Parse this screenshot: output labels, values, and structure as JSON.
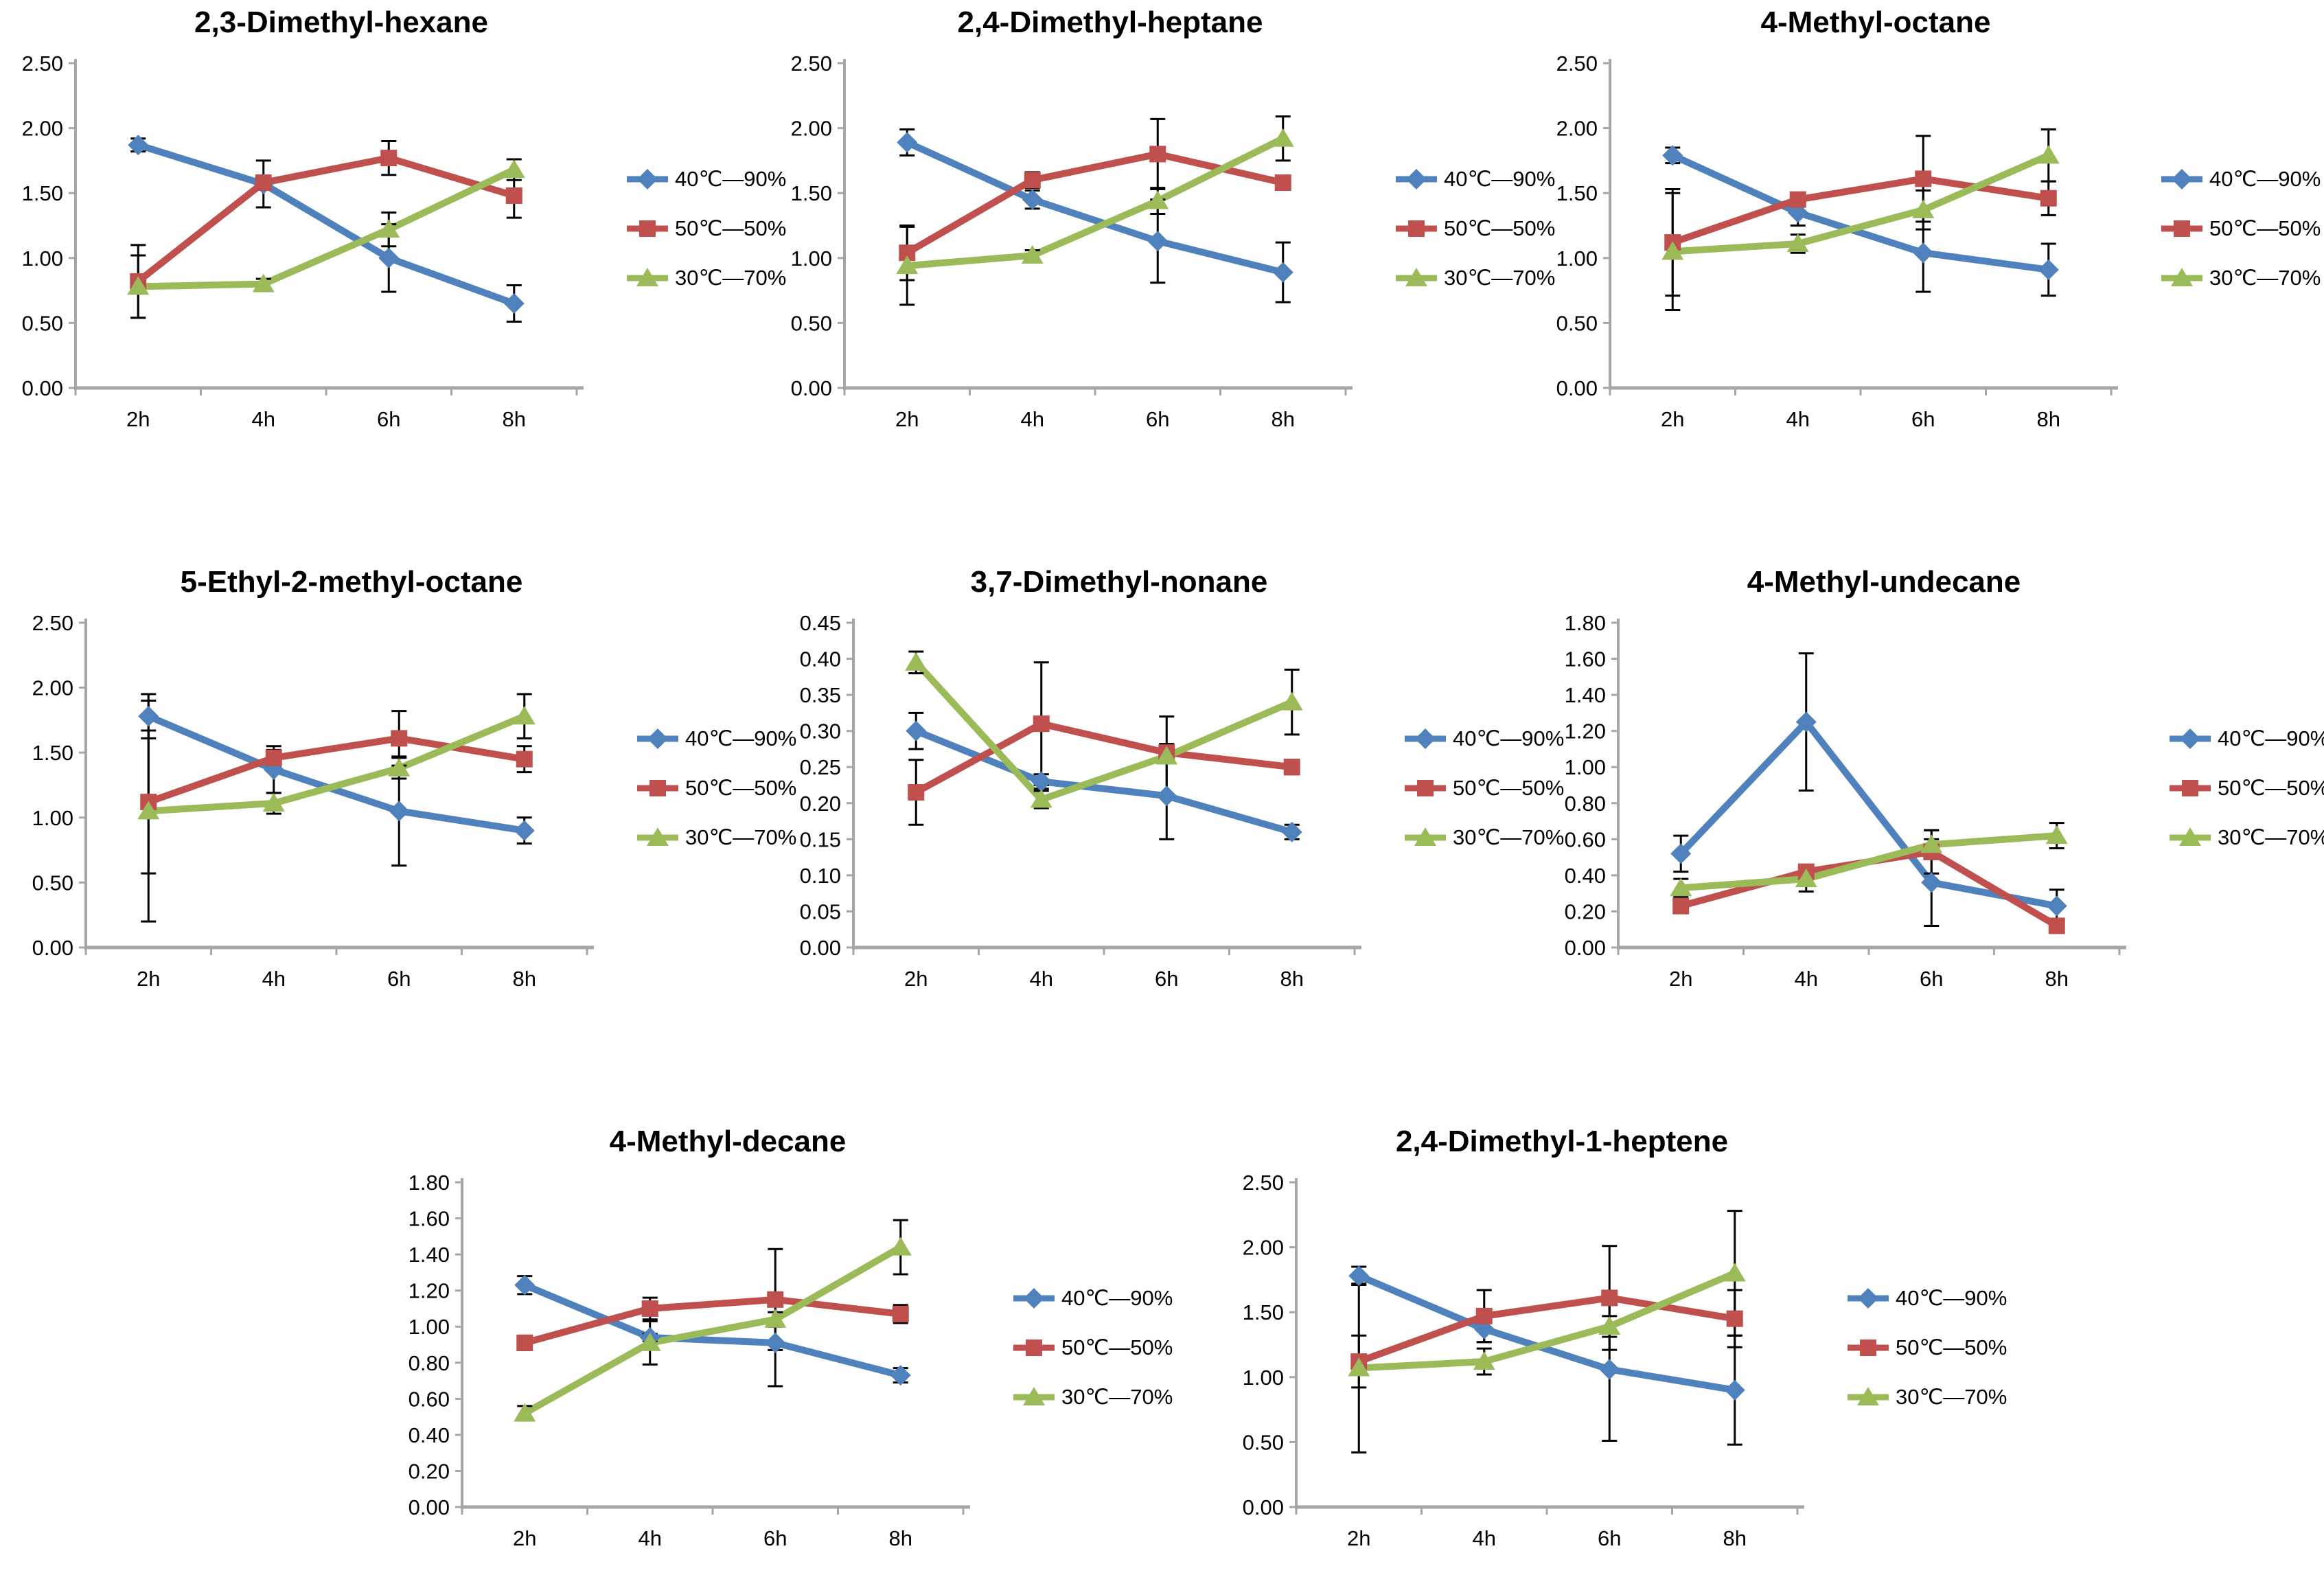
{
  "palette": {
    "blue": "#4F81BD",
    "red": "#C0504D",
    "green": "#9BBB59",
    "axis": "#A6A6A6",
    "error": "#000000"
  },
  "series_labels": [
    "40℃—90%",
    "50℃—50%",
    "30℃—70%"
  ],
  "x_categories": [
    "2h",
    "4h",
    "6h",
    "8h"
  ],
  "chart_data": [
    {
      "type": "line",
      "title": "2,3-Dimethyl-hexane",
      "categories": [
        "2h",
        "4h",
        "6h",
        "8h"
      ],
      "ylim": [
        0,
        2.5
      ],
      "ystep": 0.5,
      "grid": false,
      "legend_position": "right",
      "series": [
        {
          "name": "40℃—90%",
          "color": "blue",
          "marker": "diamond",
          "values": [
            1.87,
            1.57,
            1.0,
            0.65
          ],
          "errors": [
            0.05,
            0.18,
            0.26,
            0.14
          ]
        },
        {
          "name": "50℃—50%",
          "color": "red",
          "marker": "square",
          "values": [
            0.82,
            1.58,
            1.77,
            1.48
          ],
          "errors": [
            0.28,
            0.05,
            0.13,
            0.17
          ]
        },
        {
          "name": "30℃—70%",
          "color": "green",
          "marker": "triangle",
          "values": [
            0.78,
            0.8,
            1.22,
            1.68
          ],
          "errors": [
            0.24,
            0.04,
            0.13,
            0.08
          ]
        }
      ]
    },
    {
      "type": "line",
      "title": "2,4-Dimethyl-heptane",
      "categories": [
        "2h",
        "4h",
        "6h",
        "8h"
      ],
      "ylim": [
        0,
        2.5
      ],
      "ystep": 0.5,
      "grid": false,
      "legend_position": "right",
      "series": [
        {
          "name": "40℃—90%",
          "color": "blue",
          "marker": "diamond",
          "values": [
            1.89,
            1.45,
            1.13,
            0.89
          ],
          "errors": [
            0.1,
            0.07,
            0.32,
            0.23
          ]
        },
        {
          "name": "50℃—50%",
          "color": "red",
          "marker": "square",
          "values": [
            1.04,
            1.6,
            1.8,
            1.58
          ],
          "errors": [
            0.21,
            0.06,
            0.27,
            0.05
          ]
        },
        {
          "name": "30℃—70%",
          "color": "green",
          "marker": "triangle",
          "values": [
            0.94,
            1.02,
            1.44,
            1.92
          ],
          "errors": [
            0.3,
            0.04,
            0.1,
            0.17
          ]
        }
      ]
    },
    {
      "type": "line",
      "title": "4-Methyl-octane",
      "categories": [
        "2h",
        "4h",
        "6h",
        "8h"
      ],
      "ylim": [
        0,
        2.5
      ],
      "ystep": 0.5,
      "grid": false,
      "legend_position": "right",
      "series": [
        {
          "name": "40℃—90%",
          "color": "blue",
          "marker": "diamond",
          "values": [
            1.79,
            1.35,
            1.04,
            0.91
          ],
          "errors": [
            0.06,
            0.1,
            0.3,
            0.2
          ]
        },
        {
          "name": "50℃—50%",
          "color": "red",
          "marker": "square",
          "values": [
            1.12,
            1.45,
            1.61,
            1.46
          ],
          "errors": [
            0.41,
            0.05,
            0.33,
            0.13
          ]
        },
        {
          "name": "30℃—70%",
          "color": "green",
          "marker": "triangle",
          "values": [
            1.05,
            1.11,
            1.37,
            1.79
          ],
          "errors": [
            0.45,
            0.07,
            0.15,
            0.2
          ]
        }
      ]
    },
    {
      "type": "line",
      "title": "5-Ethyl-2-methyl-octane",
      "categories": [
        "2h",
        "4h",
        "6h",
        "8h"
      ],
      "ylim": [
        0,
        2.5
      ],
      "ystep": 0.5,
      "grid": false,
      "legend_position": "right",
      "series": [
        {
          "name": "40℃—90%",
          "color": "blue",
          "marker": "diamond",
          "values": [
            1.78,
            1.37,
            1.05,
            0.9
          ],
          "errors": [
            0.17,
            0.18,
            0.42,
            0.1
          ]
        },
        {
          "name": "50℃—50%",
          "color": "red",
          "marker": "square",
          "values": [
            1.12,
            1.46,
            1.61,
            1.45
          ],
          "errors": [
            0.55,
            0.06,
            0.21,
            0.1
          ]
        },
        {
          "name": "30℃—70%",
          "color": "green",
          "marker": "triangle",
          "values": [
            1.05,
            1.11,
            1.38,
            1.78
          ],
          "errors": [
            0.85,
            0.08,
            0.08,
            0.17
          ]
        }
      ]
    },
    {
      "type": "line",
      "title": "3,7-Dimethyl-nonane",
      "categories": [
        "2h",
        "4h",
        "6h",
        "8h"
      ],
      "ylim": [
        0,
        0.45
      ],
      "ystep": 0.05,
      "grid": false,
      "legend_position": "right",
      "series": [
        {
          "name": "40℃—90%",
          "color": "blue",
          "marker": "diamond",
          "values": [
            0.3,
            0.23,
            0.21,
            0.16
          ],
          "errors": [
            0.025,
            0.01,
            0.06,
            0.01
          ]
        },
        {
          "name": "50℃—50%",
          "color": "red",
          "marker": "square",
          "values": [
            0.215,
            0.31,
            0.27,
            0.25
          ],
          "errors": [
            0.045,
            0.085,
            0.012,
            0.01
          ]
        },
        {
          "name": "30℃—70%",
          "color": "green",
          "marker": "triangle",
          "values": [
            0.395,
            0.205,
            0.265,
            0.34
          ],
          "errors": [
            0.015,
            0.012,
            0.055,
            0.045
          ]
        }
      ]
    },
    {
      "type": "line",
      "title": "4-Methyl-undecane",
      "categories": [
        "2h",
        "4h",
        "6h",
        "8h"
      ],
      "ylim": [
        0,
        1.8
      ],
      "ystep": 0.2,
      "grid": false,
      "legend_position": "right",
      "series": [
        {
          "name": "40℃—90%",
          "color": "blue",
          "marker": "diamond",
          "values": [
            0.52,
            1.25,
            0.36,
            0.23
          ],
          "errors": [
            0.1,
            0.38,
            0.24,
            0.09
          ]
        },
        {
          "name": "50℃—50%",
          "color": "red",
          "marker": "square",
          "values": [
            0.23,
            0.42,
            0.53,
            0.12
          ],
          "errors": [
            0.04,
            0.03,
            0.12,
            0.03
          ]
        },
        {
          "name": "30℃—70%",
          "color": "green",
          "marker": "triangle",
          "values": [
            0.33,
            0.38,
            0.57,
            0.62
          ],
          "errors": [
            0.05,
            0.07,
            0.08,
            0.07
          ]
        }
      ]
    },
    {
      "type": "line",
      "title": "4-Methyl-decane",
      "categories": [
        "2h",
        "4h",
        "6h",
        "8h"
      ],
      "ylim": [
        0,
        1.8
      ],
      "ystep": 0.2,
      "grid": false,
      "legend_position": "right",
      "series": [
        {
          "name": "40℃—90%",
          "color": "blue",
          "marker": "diamond",
          "values": [
            1.23,
            0.94,
            0.91,
            0.73
          ],
          "errors": [
            0.05,
            0.02,
            0.24,
            0.04
          ]
        },
        {
          "name": "50℃—50%",
          "color": "red",
          "marker": "square",
          "values": [
            0.91,
            1.1,
            1.15,
            1.07
          ],
          "errors": [
            0.04,
            0.06,
            0.28,
            0.05
          ]
        },
        {
          "name": "30℃—70%",
          "color": "green",
          "marker": "triangle",
          "values": [
            0.52,
            0.91,
            1.04,
            1.44
          ],
          "errors": [
            0.04,
            0.12,
            0.04,
            0.15
          ]
        }
      ]
    },
    {
      "type": "line",
      "title": "2,4-Dimethyl-1-heptene",
      "categories": [
        "2h",
        "4h",
        "6h",
        "8h"
      ],
      "ylim": [
        0,
        2.5
      ],
      "ystep": 0.5,
      "grid": false,
      "legend_position": "right",
      "series": [
        {
          "name": "40℃—90%",
          "color": "blue",
          "marker": "diamond",
          "values": [
            1.78,
            1.37,
            1.06,
            0.9
          ],
          "errors": [
            0.07,
            0.1,
            0.55,
            0.42
          ]
        },
        {
          "name": "50℃—50%",
          "color": "red",
          "marker": "square",
          "values": [
            1.12,
            1.47,
            1.61,
            1.45
          ],
          "errors": [
            0.2,
            0.2,
            0.4,
            0.22
          ]
        },
        {
          "name": "30℃—70%",
          "color": "green",
          "marker": "triangle",
          "values": [
            1.07,
            1.12,
            1.39,
            1.8
          ],
          "errors": [
            0.65,
            0.1,
            0.08,
            0.48
          ]
        }
      ]
    }
  ]
}
